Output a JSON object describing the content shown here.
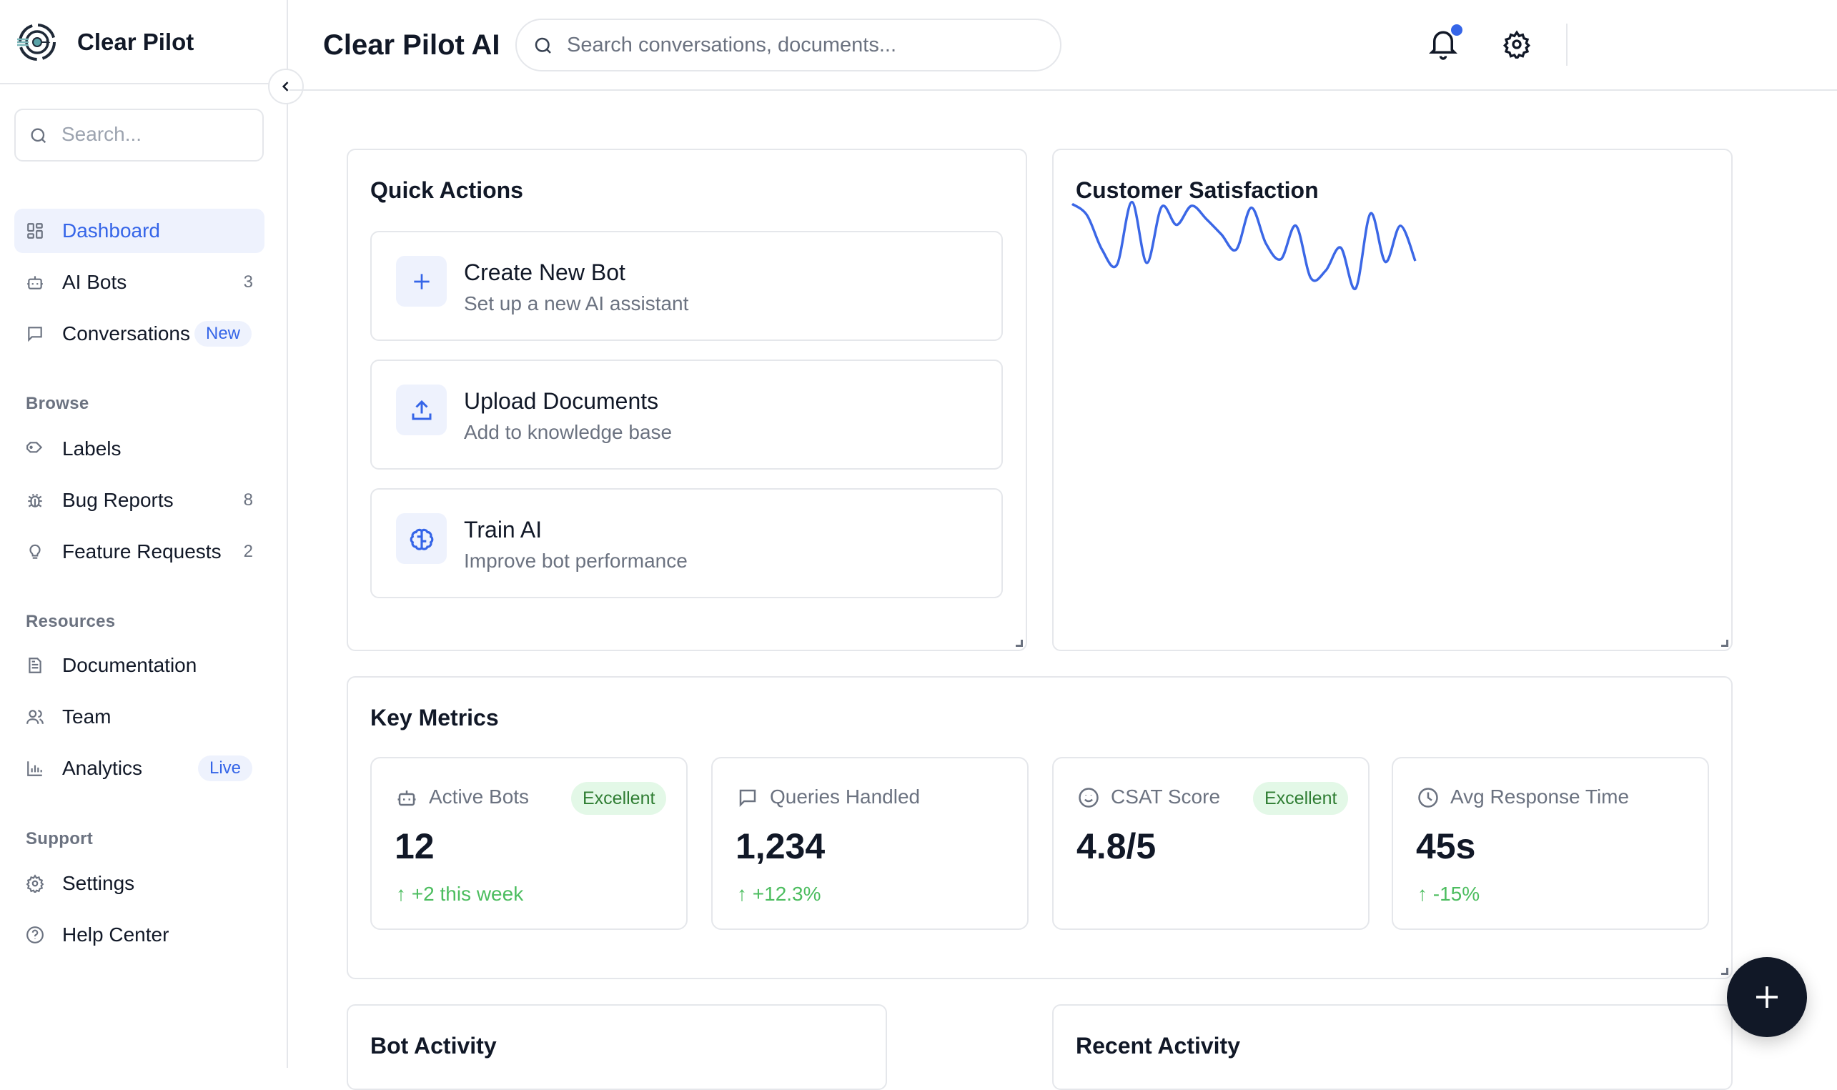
{
  "sidebar": {
    "brand": "Clear Pilot",
    "search_placeholder": "Search...",
    "items": [
      {
        "label": "Dashboard",
        "icon": "grid-icon",
        "active": true
      },
      {
        "label": "AI Bots",
        "icon": "bot-icon",
        "count": "3"
      },
      {
        "label": "Conversations",
        "icon": "message-icon",
        "badge": "New"
      }
    ],
    "sections": [
      {
        "title": "Browse",
        "items": [
          {
            "label": "Labels",
            "icon": "tag-icon"
          },
          {
            "label": "Bug Reports",
            "icon": "bug-icon",
            "count": "8"
          },
          {
            "label": "Feature Requests",
            "icon": "lightbulb-icon",
            "count": "2"
          }
        ]
      },
      {
        "title": "Resources",
        "items": [
          {
            "label": "Documentation",
            "icon": "document-icon"
          },
          {
            "label": "Team",
            "icon": "users-icon"
          },
          {
            "label": "Analytics",
            "icon": "bar-chart-icon",
            "badge": "Live"
          }
        ]
      },
      {
        "title": "Support",
        "items": [
          {
            "label": "Settings",
            "icon": "gear-icon"
          },
          {
            "label": "Help Center",
            "icon": "help-circle-icon"
          }
        ]
      }
    ]
  },
  "header": {
    "title": "Clear Pilot AI",
    "search_placeholder": "Search conversations, documents...",
    "notification_dot": true
  },
  "quick_actions": {
    "title": "Quick Actions",
    "items": [
      {
        "title": "Create New Bot",
        "subtitle": "Set up a new AI assistant",
        "icon": "plus-icon"
      },
      {
        "title": "Upload Documents",
        "subtitle": "Add to knowledge base",
        "icon": "upload-icon"
      },
      {
        "title": "Train AI",
        "subtitle": "Improve bot performance",
        "icon": "brain-icon"
      }
    ]
  },
  "satisfaction": {
    "title": "Customer Satisfaction",
    "color": "#3b67e6"
  },
  "chart_data": {
    "type": "line",
    "title": "Customer Satisfaction",
    "axes_shown": false,
    "grid": false,
    "ylim": [
      0,
      10
    ],
    "values": [
      9.6,
      8.4,
      4.8,
      3.2,
      9.8,
      3.4,
      9.3,
      7.4,
      9.4,
      8.0,
      6.4,
      4.8,
      9.2,
      5.4,
      3.8,
      7.3,
      1.8,
      2.6,
      5.0,
      0.7,
      8.6,
      3.5,
      7.3,
      3.6
    ]
  },
  "key_metrics": {
    "title": "Key Metrics",
    "items": [
      {
        "label": "Active Bots",
        "icon": "bot-icon",
        "badge": "Excellent",
        "value": "12",
        "change": "↑ +2 this week"
      },
      {
        "label": "Queries Handled",
        "icon": "message-icon",
        "value": "1,234",
        "change": "↑ +12.3%"
      },
      {
        "label": "CSAT Score",
        "icon": "smile-icon",
        "badge": "Excellent",
        "value": "4.8/5"
      },
      {
        "label": "Avg Response Time",
        "icon": "clock-icon",
        "value": "45s",
        "change": "↑ -15%"
      }
    ]
  },
  "bot_activity": {
    "title": "Bot Activity"
  },
  "recent_activity": {
    "title": "Recent Activity"
  },
  "colors": {
    "accent": "#3565e8",
    "positive": "#4cbd5f",
    "badge_bg": "#e3f8e7",
    "fab": "#111827"
  }
}
